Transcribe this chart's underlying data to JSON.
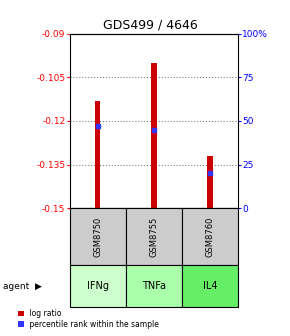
{
  "title": "GDS499 / 4646",
  "bars": [
    {
      "x": 0,
      "log_ratio": -0.113,
      "percentile": 47,
      "label": "GSM8750",
      "agent": "IFNg"
    },
    {
      "x": 1,
      "log_ratio": -0.1,
      "percentile": 45,
      "label": "GSM8755",
      "agent": "TNFa"
    },
    {
      "x": 2,
      "log_ratio": -0.132,
      "percentile": 20,
      "label": "GSM8760",
      "agent": "IL4"
    }
  ],
  "ylim_left": [
    -0.15,
    -0.09
  ],
  "yticks_left": [
    -0.15,
    -0.135,
    -0.12,
    -0.105,
    -0.09
  ],
  "ytick_labels_left": [
    "-0.15",
    "-0.135",
    "-0.12",
    "-0.105",
    "-0.09"
  ],
  "yticks_right": [
    0,
    25,
    50,
    75,
    100
  ],
  "ytick_labels_right": [
    "0",
    "25",
    "50",
    "75",
    "100%"
  ],
  "bar_color": "#cc0000",
  "percentile_color": "#3333ff",
  "agent_colors": {
    "IFNg": "#ccffcc",
    "TNFa": "#aaffaa",
    "IL4": "#66ee66"
  },
  "sample_bg": "#cccccc",
  "bar_width": 0.1,
  "legend_items": [
    {
      "color": "#cc0000",
      "label": " log ratio"
    },
    {
      "color": "#3333ff",
      "label": " percentile rank within the sample"
    }
  ]
}
